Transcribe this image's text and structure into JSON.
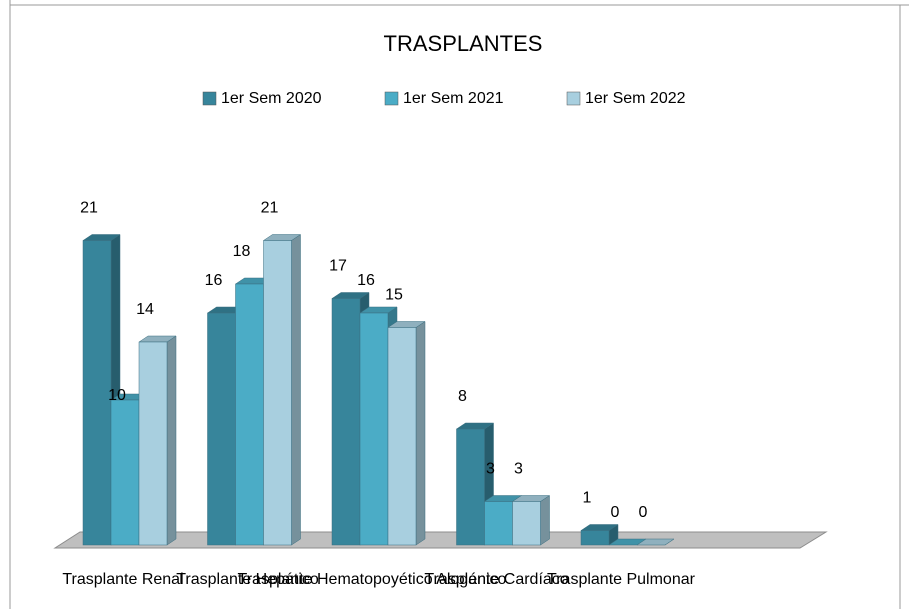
{
  "chart_data": {
    "type": "bar3d",
    "title": "TRASPLANTES",
    "categories": [
      "Trasplante Renal",
      "Trasplante Hepático",
      "Trasplante Hematopoyético Alogénico",
      "Trasplante Cardíaco",
      "Trasplante Pulmonar"
    ],
    "series": [
      {
        "name": "1er Sem 2020",
        "color": "#37859b",
        "values": [
          21,
          16,
          17,
          8,
          1
        ]
      },
      {
        "name": "1er Sem 2021",
        "color": "#4bacc6",
        "values": [
          10,
          18,
          16,
          3,
          0
        ]
      },
      {
        "name": "1er Sem 2022",
        "color": "#a8cfdf",
        "values": [
          14,
          21,
          15,
          3,
          0
        ]
      }
    ],
    "legend": "top"
  }
}
